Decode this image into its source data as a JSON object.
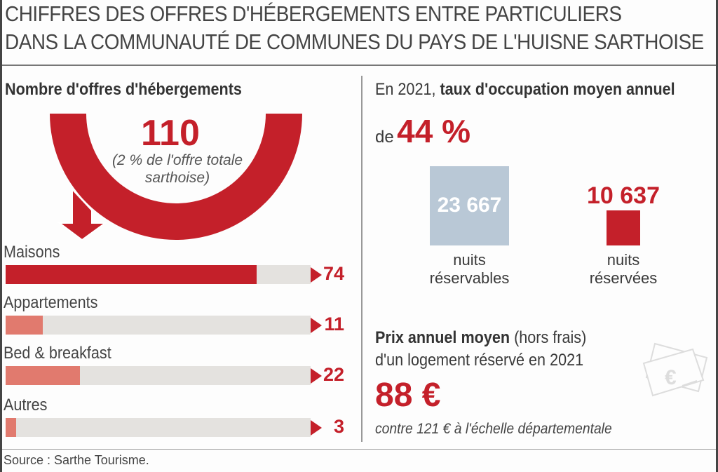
{
  "title_line1": "CHIFFRES DES OFFRES D'HÉBERGEMENTS ENTRE PARTICULIERS",
  "title_line2": "DANS LA COMMUNAUTÉ DE COMMUNES DU PAYS DE L'HUISNE SARTHOISE",
  "colors": {
    "red": "#c4202a",
    "light_red": "#e17a6e",
    "track": "#e4e2df",
    "blue": "#b9c8d6"
  },
  "offers": {
    "heading": "Nombre d'offres d'hébergements",
    "total": "110",
    "total_note_1": "(2 % de l'offre totale",
    "total_note_2": "sarthoise)"
  },
  "chart_data": {
    "type": "bar",
    "title": "Nombre d'offres d'hébergements",
    "categories": [
      "Maisons",
      "Appartements",
      "Bed & breakfast",
      "Autres"
    ],
    "values": [
      74,
      11,
      22,
      3
    ],
    "value_labels": [
      "74",
      "11",
      "22",
      "3"
    ],
    "xlim": [
      0,
      90
    ]
  },
  "occupation": {
    "prefix": "En 2021, ",
    "bold": "taux d'occupation moyen annuel",
    "de": "de",
    "rate": "44 %",
    "bookable_value": "23 667",
    "bookable_label_1": "nuits",
    "bookable_label_2": "réservables",
    "booked_value": "10 637",
    "booked_label_1": "nuits",
    "booked_label_2": "réservées"
  },
  "price": {
    "bold": "Prix annuel moyen",
    "rest": " (hors frais)",
    "line2": "d'un logement réservé en 2021",
    "value": "88 €",
    "compare": "contre 121 € à l'échelle départementale"
  },
  "source": "Source : Sarthe Tourisme."
}
